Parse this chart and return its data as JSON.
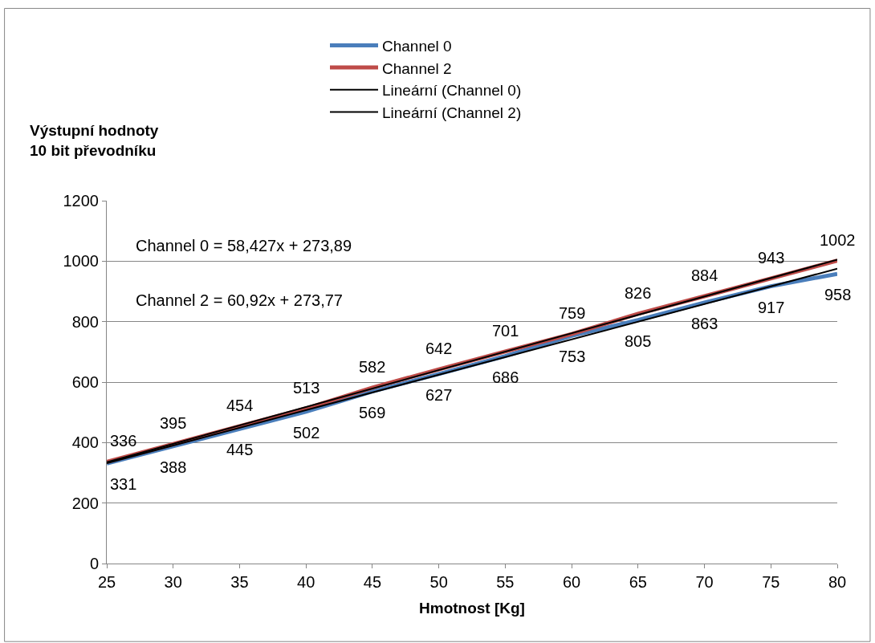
{
  "chart_data": {
    "type": "line",
    "xlabel": "Hmotnost [Kg]",
    "ylabel": "Výstupní hodnoty\n10 bit převodníku",
    "x": [
      25,
      30,
      35,
      40,
      45,
      50,
      55,
      60,
      65,
      70,
      75,
      80
    ],
    "series": [
      {
        "name": "Channel 0",
        "color": "#4a7ebb",
        "values": [
          331,
          388,
          445,
          502,
          569,
          627,
          686,
          753,
          805,
          863,
          917,
          958
        ],
        "data_labels": true
      },
      {
        "name": "Channel 2",
        "color": "#be4b48",
        "values": [
          336,
          395,
          454,
          513,
          582,
          642,
          701,
          759,
          826,
          884,
          943,
          1002
        ],
        "data_labels": true
      },
      {
        "name": "Lineární (Channel 0)",
        "color": "#000000",
        "values": [
          332,
          null,
          null,
          null,
          null,
          null,
          null,
          null,
          null,
          null,
          null,
          975
        ]
      },
      {
        "name": "Lineární (Channel 2)",
        "color": "#000000",
        "values": [
          335,
          null,
          null,
          null,
          null,
          null,
          null,
          null,
          null,
          null,
          null,
          1005
        ]
      }
    ],
    "annotations": [
      "Channel 0 = 58,427x + 273,89",
      "Channel 2 = 60,92x + 273,77"
    ],
    "xlim": [
      25,
      80
    ],
    "xticks": [
      25,
      30,
      35,
      40,
      45,
      50,
      55,
      60,
      65,
      70,
      75,
      80
    ],
    "ylim": [
      0,
      1200
    ],
    "yticks": [
      0,
      200,
      400,
      600,
      800,
      1000,
      1200
    ],
    "grid": "y",
    "legend": "top",
    "marker": "none",
    "line_style": "solid"
  }
}
